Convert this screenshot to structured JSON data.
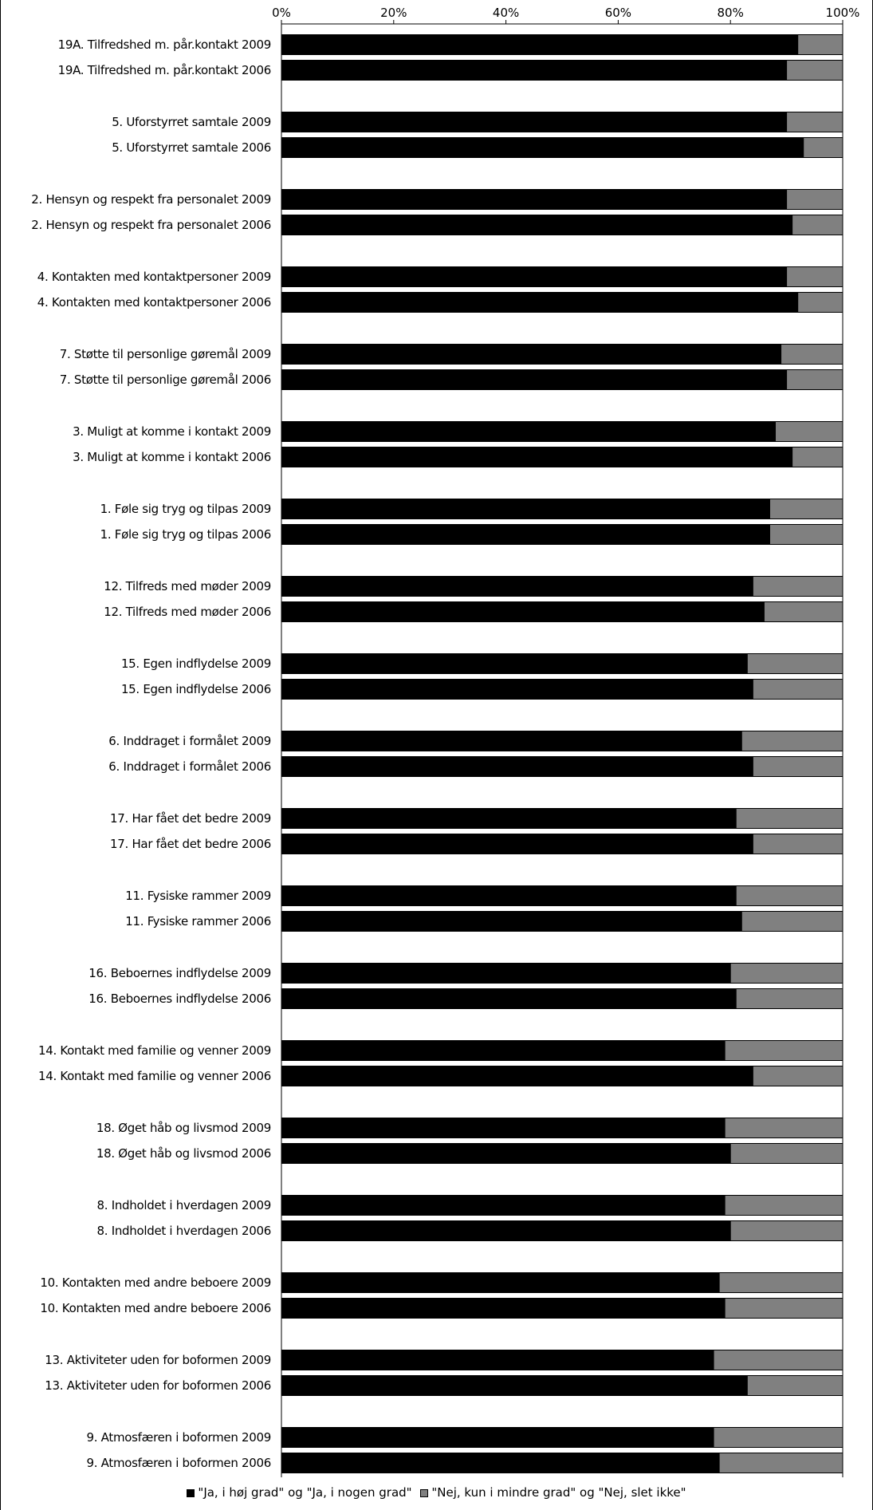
{
  "chart_data": {
    "type": "bar",
    "orientation": "horizontal",
    "stacked": true,
    "percent_stacked": true,
    "title": "",
    "xlim": [
      0,
      100
    ],
    "x_ticks": [
      "0%",
      "20%",
      "40%",
      "60%",
      "80%",
      "100%"
    ],
    "x_tick_position": "top",
    "grid": false,
    "legend_position": "bottom",
    "colors": {
      "positive": "#000000",
      "negative": "#808080"
    },
    "categories": [
      "19A. Tilfredshed m. pår.kontakt 2009",
      "19A. Tilfredshed m. pår.kontakt 2006",
      "5. Uforstyrret samtale 2009",
      "5. Uforstyrret samtale 2006",
      "2. Hensyn og respekt fra personalet 2009",
      "2. Hensyn og respekt fra personalet 2006",
      "4. Kontakten med kontaktpersoner 2009",
      "4. Kontakten med kontaktpersoner 2006",
      "7. Støtte til personlige gøremål 2009",
      "7. Støtte til personlige gøremål 2006",
      "3. Muligt at komme i kontakt 2009",
      "3. Muligt at komme i kontakt 2006",
      "1. Føle sig tryg og tilpas 2009",
      "1. Føle sig tryg og tilpas 2006",
      "12. Tilfreds med møder 2009",
      "12. Tilfreds med møder 2006",
      "15. Egen indflydelse 2009",
      "15. Egen indflydelse 2006",
      "6. Inddraget i formålet 2009",
      "6. Inddraget i formålet 2006",
      "17. Har fået det bedre 2009",
      "17. Har fået det bedre 2006",
      "11. Fysiske rammer 2009",
      "11. Fysiske rammer 2006",
      "16. Beboernes indflydelse 2009",
      "16. Beboernes indflydelse 2006",
      "14. Kontakt med familie og venner 2009",
      "14. Kontakt med familie og venner 2006",
      "18. Øget håb og livsmod 2009",
      "18. Øget håb og livsmod 2006",
      "8. Indholdet i hverdagen 2009",
      "8. Indholdet i hverdagen 2006",
      "10. Kontakten med andre beboere 2009",
      "10. Kontakten med andre beboere 2006",
      "13. Aktiviteter uden for boformen 2009",
      "13. Aktiviteter uden for boformen 2006",
      "9. Atmosfæren i boformen 2009",
      "9. Atmosfæren i boformen 2006"
    ],
    "series": [
      {
        "name": "\"Ja, i høj grad\" og \"Ja, i nogen grad\"",
        "values": [
          92,
          90,
          90,
          93,
          90,
          91,
          90,
          92,
          89,
          90,
          88,
          91,
          87,
          87,
          84,
          86,
          83,
          84,
          82,
          84,
          81,
          84,
          81,
          82,
          80,
          81,
          79,
          84,
          79,
          80,
          79,
          80,
          78,
          79,
          77,
          83,
          77,
          78
        ]
      },
      {
        "name": "\"Nej, kun i mindre grad\" og \"Nej, slet ikke\"",
        "values": [
          8,
          10,
          10,
          7,
          10,
          9,
          10,
          8,
          11,
          10,
          12,
          9,
          13,
          13,
          16,
          14,
          17,
          16,
          18,
          16,
          19,
          16,
          19,
          18,
          20,
          19,
          21,
          16,
          21,
          20,
          21,
          20,
          22,
          21,
          23,
          17,
          23,
          22
        ]
      }
    ]
  }
}
